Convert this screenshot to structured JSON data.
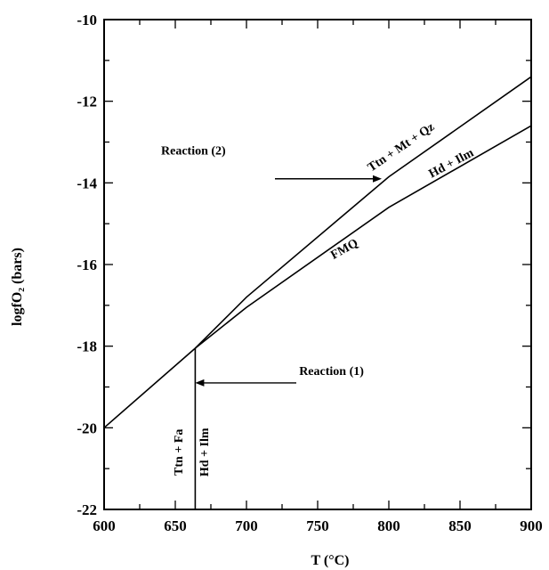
{
  "chart_data": {
    "type": "line",
    "xlabel": "T (°C)",
    "ylabel": "logfO₂ (bars)",
    "xlim": [
      600,
      900
    ],
    "ylim": [
      -22,
      -10
    ],
    "xticks": [
      "600",
      "650",
      "700",
      "750",
      "800",
      "850",
      "900"
    ],
    "yticks": [
      "-22",
      "-20",
      "-18",
      "-16",
      "-14",
      "-12",
      "-10"
    ],
    "grid": false,
    "series": [
      {
        "name": "Ttn + Mt + Qz / Hd + Ilm",
        "x": [
          600,
          664,
          700,
          800,
          900
        ],
        "y": [
          -20,
          -18.05,
          -16.8,
          -13.85,
          -11.4
        ]
      },
      {
        "name": "FMQ",
        "x": [
          664,
          700,
          800,
          900
        ],
        "y": [
          -18.05,
          -17.05,
          -14.6,
          -12.6
        ]
      },
      {
        "name": "Ttn + Fa / Hd + Ilm",
        "x": [
          664,
          664
        ],
        "y": [
          -18.05,
          -22
        ]
      }
    ],
    "annotations": [
      {
        "text": "Reaction (2)",
        "x": 795,
        "y": -13.9
      },
      {
        "text": "Reaction (1)",
        "x": 664,
        "y": -18.9
      },
      {
        "text": "Ttn + Mt + Qz",
        "x": 810,
        "y": -13.2
      },
      {
        "text": "Hd + Ilm",
        "x": 845,
        "y": -13.6
      },
      {
        "text": "FMQ",
        "x": 770,
        "y": -15.7
      },
      {
        "text": "Ttn + Fa",
        "x": 655,
        "y": -20.6
      },
      {
        "text": "Hd + Ilm",
        "x": 673,
        "y": -20.6
      }
    ]
  }
}
